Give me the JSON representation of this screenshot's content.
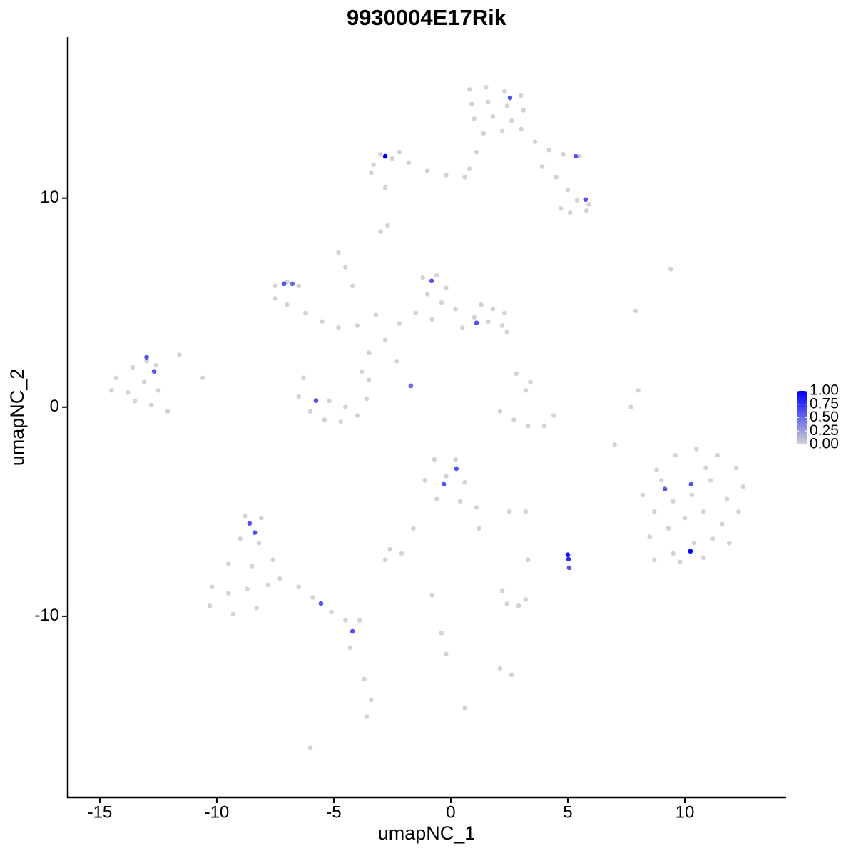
{
  "chart_data": {
    "type": "scatter",
    "title": "9930004E17Rik",
    "x_label": "umapNC_1",
    "y_label": "umapNC_2",
    "xlim": [
      -16.37,
      14.33
    ],
    "ylim": [
      -18.67,
      17.7
    ],
    "xticks": [
      -15,
      -10,
      -5,
      0,
      5,
      10
    ],
    "yticks": [
      -10,
      0,
      10
    ],
    "low_color": "#d3d3d3",
    "high_color": "#0000ff",
    "color_lim": [
      0,
      1
    ],
    "color_ticks": [
      {
        "value": 0,
        "label": "0.00"
      },
      {
        "value": 0.25,
        "label": "0.25"
      },
      {
        "value": 0.5,
        "label": "0.50"
      },
      {
        "value": 0.75,
        "label": "0.75"
      },
      {
        "value": 1,
        "label": "1.00"
      }
    ],
    "legend_position": "right",
    "x": [
      0.8,
      1.5,
      2.3,
      3.0,
      0.9,
      1.6,
      2.4,
      3.1,
      1.0,
      1.8,
      2.6,
      1.4,
      2.2,
      3.0,
      3.6,
      4.2,
      4.8,
      5.5,
      3.9,
      4.5,
      5.0,
      5.4,
      5.9,
      5.1,
      5.8,
      4.7,
      1.1,
      0.8,
      0.6,
      -0.2,
      -1.0,
      -1.8,
      -2.5,
      -3.0,
      -2.2,
      -3.3,
      -3.4,
      -2.8,
      -2.7,
      -3.0,
      -7.5,
      -7.0,
      -6.5,
      -7.5,
      -7.0,
      -6.2,
      -5.5,
      -4.8,
      -4.0,
      -3.2,
      -4.5,
      -4.8,
      -4.2,
      -1.2,
      -0.6,
      -0.2,
      -1.0,
      -0.4,
      0.2,
      -1.5,
      -0.8,
      -2.2,
      1.3,
      1.8,
      2.3,
      1.0,
      1.6,
      2.2,
      2.4,
      0.5,
      -2.8,
      -3.5,
      -2.3,
      -3.8,
      -14.3,
      -13.6,
      -13.0,
      -12.6,
      -14.5,
      -13.8,
      -13.1,
      -12.5,
      -13.5,
      -12.8,
      -12.1,
      -11.6,
      -10.6,
      -6.3,
      -6.5,
      -6.0,
      -5.4,
      -4.7,
      -4.0,
      -3.6,
      -3.5,
      -5.2,
      -4.5,
      2.1,
      2.7,
      3.3,
      4.0,
      4.4,
      3.2,
      3.4,
      2.8,
      8.0,
      7.7,
      7.0,
      7.9,
      9.4,
      8.2,
      8.8,
      9.6,
      10.5,
      11.4,
      12.2,
      12.5,
      8.7,
      9.5,
      10.3,
      11.1,
      11.8,
      8.5,
      9.3,
      10.0,
      10.8,
      11.6,
      12.3,
      8.7,
      9.5,
      10.4,
      11.2,
      11.9,
      9.8,
      10.8,
      9.0,
      10.9,
      -8.8,
      -8.1,
      -9.0,
      -8.2,
      -9.5,
      -8.5,
      -7.6,
      -10.2,
      -9.5,
      -8.7,
      -7.8,
      -10.3,
      -9.3,
      -8.3,
      -7.3,
      -6.5,
      -5.9,
      -5.1,
      -4.5,
      -3.9,
      -4.3,
      -3.7,
      -3.4,
      -3.6,
      -6.0,
      -0.7,
      0.2,
      -1.1,
      -0.2,
      0.6,
      -0.6,
      0.4,
      1.1,
      1.2,
      -1.6,
      -2.6,
      -2.1,
      2.5,
      3.2,
      2.4,
      2.9,
      3.2,
      2.2,
      -0.8,
      -0.4,
      -0.2,
      2.1,
      2.6,
      0.6,
      3.3,
      -2.8,
      -2.8,
      2.53,
      5.34,
      5.76,
      -7.13,
      -6.77,
      -0.82,
      1.1,
      -13.0,
      -12.68,
      -1.71,
      -5.76,
      0.24,
      -0.3,
      9.15,
      10.27,
      10.24,
      5.0,
      5.03,
      5.06,
      -8.6,
      -8.38,
      -5.55,
      -4.2
    ],
    "y": [
      15.2,
      15.3,
      15.1,
      14.9,
      14.5,
      14.6,
      14.4,
      14.2,
      13.8,
      13.9,
      13.7,
      13.1,
      13.2,
      13.3,
      12.7,
      12.3,
      12.1,
      12.0,
      11.5,
      11.0,
      10.4,
      9.9,
      9.7,
      9.3,
      9.4,
      9.5,
      12.2,
      11.4,
      11.0,
      11.1,
      11.3,
      11.7,
      11.9,
      12.1,
      12.2,
      11.6,
      11.2,
      10.5,
      8.7,
      8.4,
      5.8,
      6.0,
      5.8,
      5.2,
      4.9,
      4.5,
      4.1,
      3.8,
      3.9,
      4.4,
      6.7,
      7.4,
      5.8,
      6.2,
      6.3,
      5.7,
      5.4,
      5.0,
      4.7,
      4.5,
      4.2,
      4.0,
      4.9,
      4.7,
      4.5,
      4.3,
      4.1,
      3.9,
      3.6,
      3.8,
      3.2,
      2.6,
      2.2,
      1.7,
      1.4,
      1.9,
      2.2,
      2.0,
      0.8,
      0.7,
      1.2,
      0.8,
      0.3,
      0.1,
      -0.2,
      2.5,
      1.4,
      1.4,
      0.5,
      -0.2,
      -0.6,
      -0.7,
      -0.4,
      0.4,
      1.3,
      0.3,
      0.0,
      -0.2,
      -0.6,
      -0.9,
      -0.9,
      -0.4,
      0.8,
      1.2,
      1.6,
      0.8,
      0.0,
      -1.8,
      4.6,
      6.6,
      -4.2,
      -3.0,
      -2.3,
      -2.0,
      -2.3,
      -2.9,
      -3.8,
      -5.0,
      -4.5,
      -4.2,
      -3.5,
      -4.4,
      -6.2,
      -5.8,
      -5.3,
      -5.0,
      -5.6,
      -5.0,
      -7.3,
      -7.0,
      -6.5,
      -6.3,
      -6.5,
      -7.4,
      -7.2,
      -3.5,
      -2.9,
      -5.2,
      -5.3,
      -6.3,
      -6.5,
      -7.5,
      -7.6,
      -7.3,
      -8.6,
      -8.9,
      -8.7,
      -8.5,
      -9.5,
      -9.9,
      -9.6,
      -8.2,
      -8.6,
      -9.1,
      -9.8,
      -10.2,
      -10.2,
      -11.5,
      -13.0,
      -14.0,
      -14.8,
      -16.3,
      -2.5,
      -2.5,
      -3.5,
      -3.3,
      -3.6,
      -4.4,
      -4.5,
      -4.8,
      -5.8,
      -5.8,
      -6.8,
      -7.0,
      -5.0,
      -5.0,
      -9.4,
      -9.5,
      -9.2,
      -8.8,
      -9.0,
      -10.8,
      -11.8,
      -12.5,
      -12.8,
      -14.4,
      -7.3,
      -7.3,
      12.0,
      14.8,
      12.0,
      9.93,
      5.9,
      5.9,
      6.04,
      4.03,
      2.39,
      1.71,
      1.02,
      0.31,
      -2.94,
      -3.69,
      -3.92,
      -3.69,
      -6.89,
      -7.06,
      -7.27,
      -7.68,
      -5.56,
      -6.0,
      -9.39,
      -10.72
    ],
    "values": [
      0,
      0,
      0,
      0,
      0,
      0,
      0,
      0,
      0,
      0,
      0,
      0,
      0,
      0,
      0,
      0,
      0,
      0,
      0,
      0,
      0,
      0,
      0,
      0,
      0,
      0,
      0,
      0,
      0,
      0,
      0,
      0,
      0,
      0,
      0,
      0,
      0,
      0,
      0,
      0,
      0,
      0,
      0,
      0,
      0,
      0,
      0,
      0,
      0,
      0,
      0,
      0,
      0,
      0,
      0,
      0,
      0,
      0,
      0,
      0,
      0,
      0,
      0,
      0,
      0,
      0,
      0,
      0,
      0,
      0,
      0,
      0,
      0,
      0,
      0,
      0,
      0,
      0,
      0,
      0,
      0,
      0,
      0,
      0,
      0,
      0,
      0,
      0,
      0,
      0,
      0,
      0,
      0,
      0,
      0,
      0,
      0,
      0,
      0,
      0,
      0,
      0,
      0,
      0,
      0,
      0,
      0,
      0,
      0,
      0,
      0,
      0,
      0,
      0,
      0,
      0,
      0,
      0,
      0,
      0,
      0,
      0,
      0,
      0,
      0,
      0,
      0,
      0,
      0,
      0,
      0,
      0,
      0,
      0,
      0,
      0,
      0,
      0,
      0,
      0,
      0,
      0,
      0,
      0,
      0,
      0,
      0,
      0,
      0,
      0,
      0,
      0,
      0,
      0,
      0,
      0,
      0,
      0,
      0,
      0,
      0,
      0,
      0,
      0,
      0,
      0,
      0,
      0,
      0,
      0,
      0,
      0,
      0,
      0,
      0,
      0,
      0,
      0,
      0,
      0,
      0,
      0,
      0,
      0,
      0,
      0,
      0,
      0,
      1,
      0.6,
      0.6,
      0.6,
      0.6,
      0.5,
      0.6,
      0.6,
      0.6,
      0.6,
      0.5,
      0.6,
      0.6,
      0.6,
      0.6,
      0.6,
      1,
      0.9,
      0.8,
      0.6,
      0.6,
      0.6,
      0.6,
      0.6
    ]
  }
}
